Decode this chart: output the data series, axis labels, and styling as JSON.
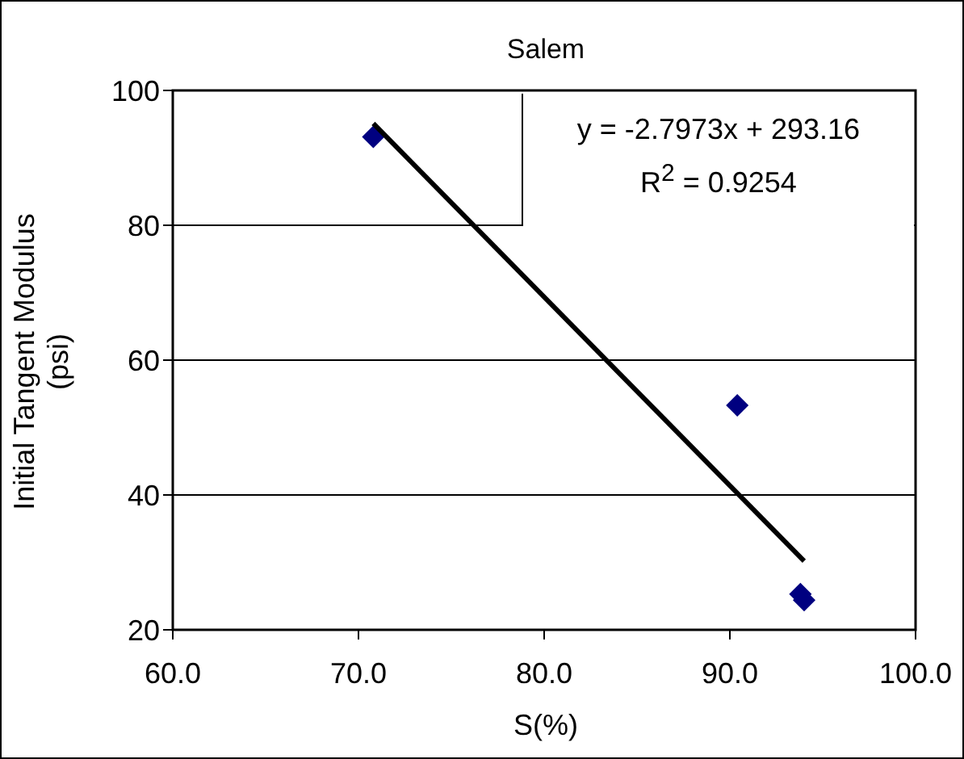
{
  "chart_data": {
    "type": "scatter",
    "title": "Salem",
    "xlabel": "S(%)",
    "ylabel": "Initial Tangent Modulus (psi)",
    "xlim": [
      60,
      100
    ],
    "xticks": [
      {
        "value": 60,
        "label": "60.0"
      },
      {
        "value": 70,
        "label": "70.0"
      },
      {
        "value": 80,
        "label": "80.0"
      },
      {
        "value": 90,
        "label": "90.0"
      },
      {
        "value": 100,
        "label": "100.0"
      }
    ],
    "ylim": [
      20,
      100
    ],
    "yticks": [
      20,
      40,
      60,
      80,
      100
    ],
    "grid": "y",
    "series": [
      {
        "type": "scatter",
        "marker": "diamond",
        "color": "#000080",
        "x": [
          70.8,
          90.4,
          93.8,
          94.0
        ],
        "values": [
          93.1,
          53.3,
          25.3,
          24.4
        ]
      },
      {
        "type": "line",
        "color": "#000000",
        "x": [
          70.8,
          94.0
        ],
        "values": [
          95.1,
          30.2
        ]
      }
    ],
    "annotations": [
      "y = -2.7973x + 293.16",
      "R$^{2}$ = 0.9254"
    ]
  }
}
